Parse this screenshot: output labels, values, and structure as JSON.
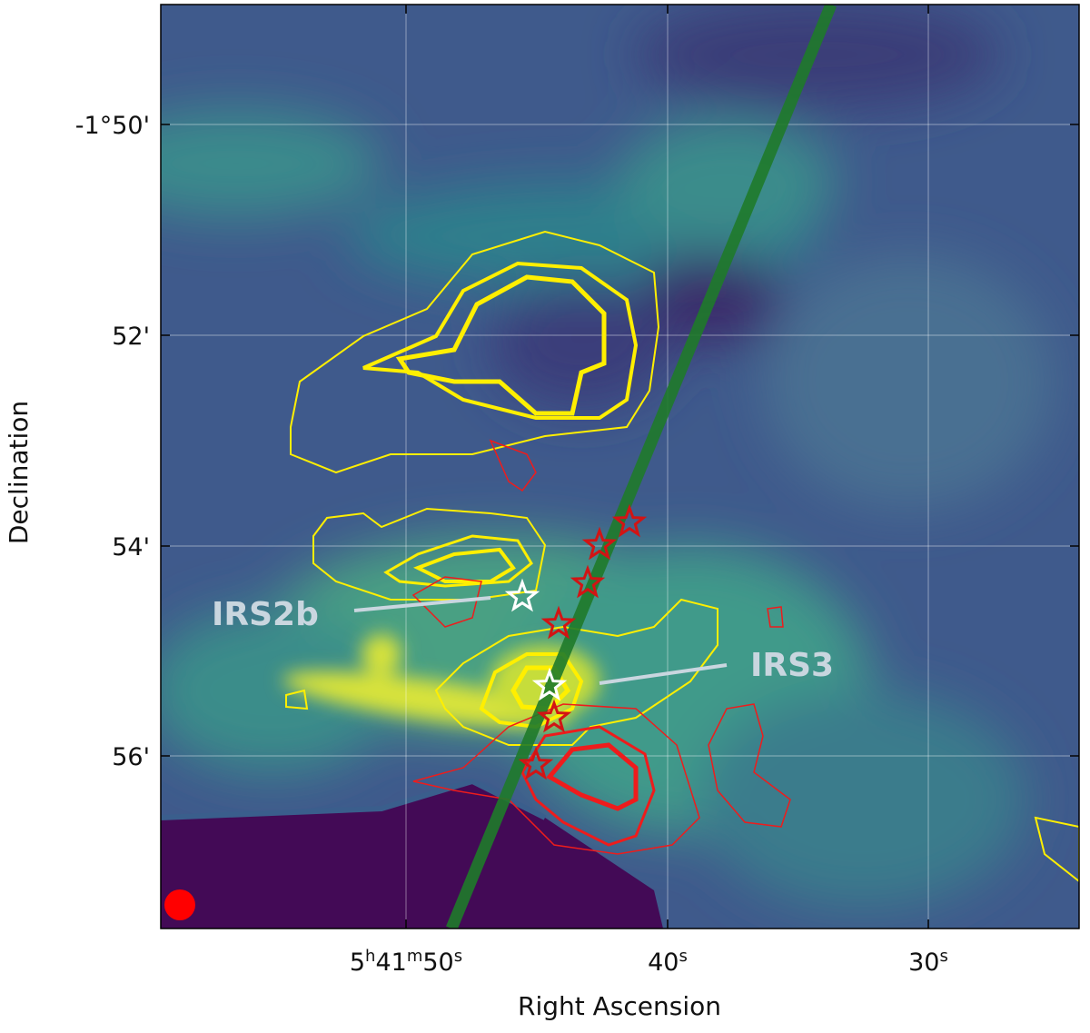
{
  "figure": {
    "x_axis": {
      "label": "Right Ascension",
      "ticks": [
        [
          "5",
          "h",
          "41",
          "m",
          "50",
          "s"
        ],
        [
          "40",
          "s"
        ],
        [
          "30",
          "s"
        ]
      ]
    },
    "y_axis": {
      "label": "Declination",
      "ticks": [
        "-1°50'",
        "52'",
        "54'",
        "56'"
      ]
    },
    "annotations": [
      "IRS2b",
      "IRS3"
    ]
  }
}
